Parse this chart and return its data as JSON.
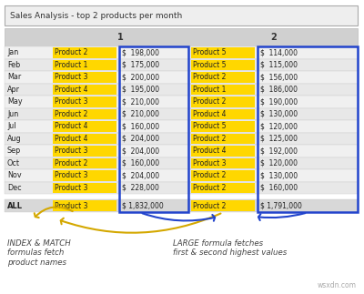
{
  "title": "Sales Analysis - top 2 products per month",
  "months": [
    "Jan",
    "Feb",
    "Mar",
    "Apr",
    "May",
    "Jun",
    "Jul",
    "Aug",
    "Sep",
    "Oct",
    "Nov",
    "Dec",
    "ALL"
  ],
  "prod1": [
    "Product 2",
    "Product 1",
    "Product 3",
    "Product 4",
    "Product 3",
    "Product 2",
    "Product 4",
    "Product 4",
    "Product 3",
    "Product 2",
    "Product 3",
    "Product 3",
    "Product 3"
  ],
  "val1": [
    "$  198,000",
    "$  175,000",
    "$  200,000",
    "$  195,000",
    "$  210,000",
    "$  210,000",
    "$  160,000",
    "$  204,000",
    "$  204,000",
    "$  160,000",
    "$  204,000",
    "$  228,000",
    "$ 1,832,000"
  ],
  "prod2": [
    "Product 5",
    "Product 5",
    "Product 2",
    "Product 1",
    "Product 2",
    "Product 4",
    "Product 5",
    "Product 2",
    "Product 4",
    "Product 3",
    "Product 2",
    "Product 2",
    "Product 2"
  ],
  "val2": [
    "$  114,000",
    "$  115,000",
    "$  156,000",
    "$  186,000",
    "$  190,000",
    "$  130,000",
    "$  120,000",
    "$  125,000",
    "$  192,000",
    "$  120,000",
    "$  130,000",
    "$  160,000",
    "$ 1,791,000"
  ],
  "yellow_color": "#FFD700",
  "blue_border": "#2244CC",
  "yellow_arrow": "#D4A800",
  "row_bg_light": "#f0f0f0",
  "row_bg_mid": "#e8e8e8",
  "all_row_bg": "#d8d8d8",
  "header_bg": "#d0d0d0",
  "title_bg": "#eeeeee"
}
